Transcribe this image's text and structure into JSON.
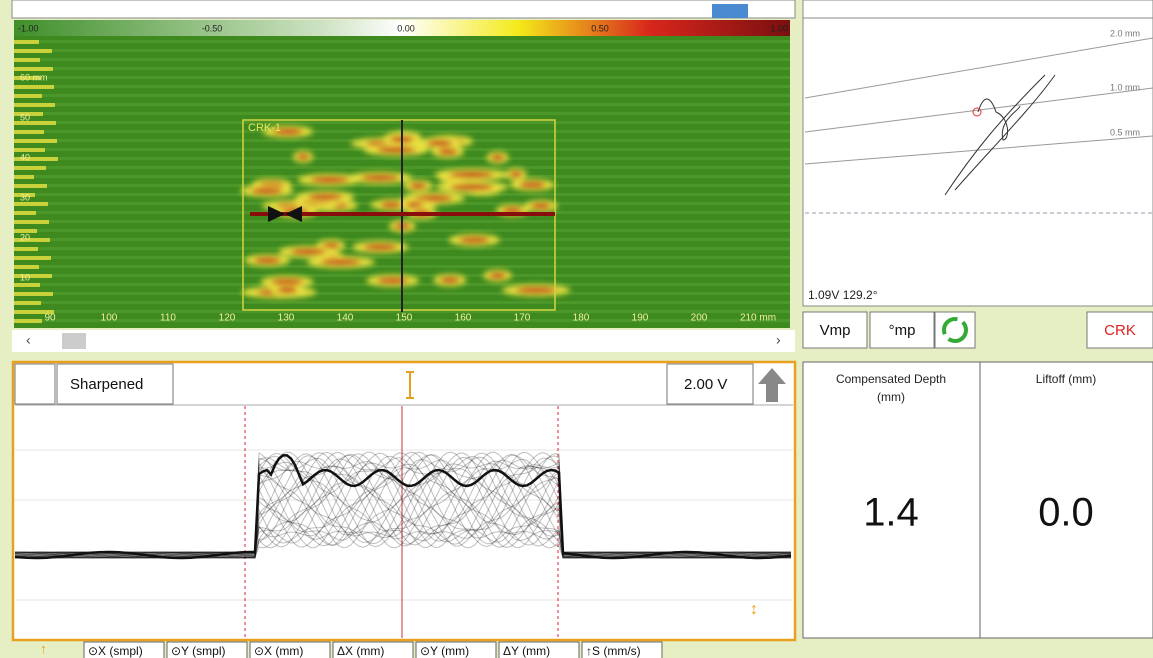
{
  "cscan": {
    "colorbar_ticks": [
      "-1.00",
      "-0.50",
      "0.00",
      "0.50",
      "1.00"
    ],
    "y_labels": [
      "60 mm",
      "50",
      "40",
      "30",
      "20",
      "10"
    ],
    "x_labels": [
      "90",
      "100",
      "110",
      "120",
      "130",
      "140",
      "150",
      "160",
      "170",
      "180",
      "190",
      "200",
      "210 mm"
    ],
    "indication": "CRK-1"
  },
  "impedance": {
    "curve_labels": [
      "2.0 mm",
      "1.0 mm",
      "0.5 mm"
    ],
    "readout": "1.09V 129.2°",
    "buttons": [
      "Vmp",
      "°mp",
      "CRK"
    ]
  },
  "strip": {
    "mode": "Sharpened",
    "scale": "2.00 V"
  },
  "readings": [
    {
      "label": "Compensated Depth (mm)",
      "value": "1.4"
    },
    {
      "label": "Liftoff (mm)",
      "value": "0.0"
    }
  ],
  "status_columns": [
    "⊙X (smpl)",
    "⊙Y (smpl)",
    "⊙X (mm)",
    "ΔX (mm)",
    "⊙Y (mm)",
    "ΔY (mm)",
    "↑S (mm/s)"
  ]
}
